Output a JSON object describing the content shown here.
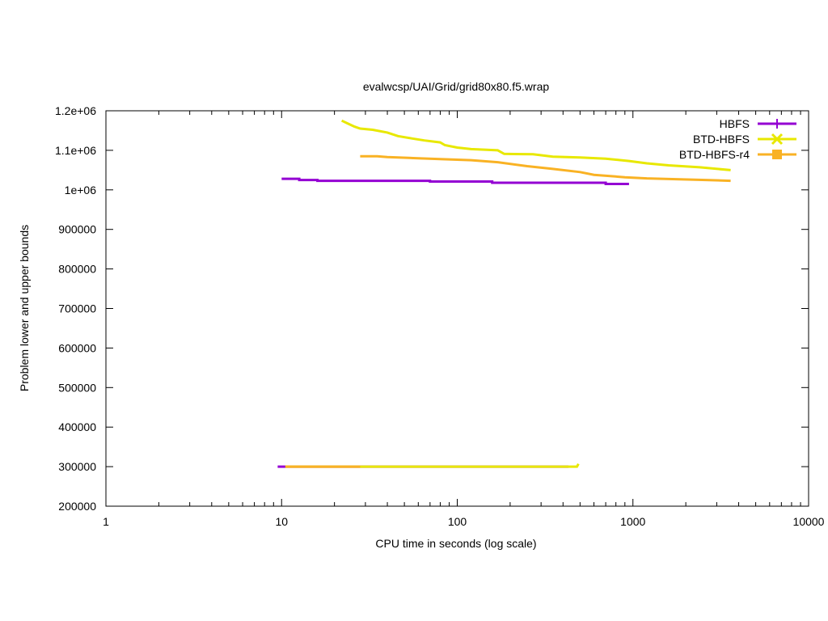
{
  "chart_data": {
    "type": "line",
    "title": "evalwcsp/UAI/Grid/grid80x80.f5.wrap",
    "xlabel": "CPU time in seconds (log scale)",
    "ylabel": "Problem lower and upper bounds",
    "xscale": "log",
    "xlim": [
      1,
      10000
    ],
    "ylim": [
      200000,
      1200000
    ],
    "x_ticks": [
      1,
      10,
      100,
      1000,
      10000
    ],
    "x_tick_labels": [
      "1",
      "10",
      "100",
      "1000",
      "10000"
    ],
    "y_ticks": [
      200000,
      300000,
      400000,
      500000,
      600000,
      700000,
      800000,
      900000,
      1000000,
      1100000,
      1200000
    ],
    "y_tick_labels": [
      "200000",
      "300000",
      "400000",
      "500000",
      "600000",
      "700000",
      "800000",
      "900000",
      "1e+06",
      "1.1e+06",
      "1.2e+06"
    ],
    "grid": false,
    "legend_position": "top-right",
    "series": [
      {
        "name": "HBFS",
        "color": "#9400d3",
        "marker": "plus",
        "upper": [
          [
            10,
            1028000
          ],
          [
            12.6,
            1028000
          ],
          [
            12.6,
            1025000
          ],
          [
            16,
            1025000
          ],
          [
            16,
            1023000
          ],
          [
            70,
            1023000
          ],
          [
            70,
            1021000
          ],
          [
            158,
            1021000
          ],
          [
            158,
            1018000
          ],
          [
            700,
            1018000
          ],
          [
            700,
            1015000
          ],
          [
            950,
            1015000
          ]
        ],
        "lower": [
          [
            9.5,
            300000
          ],
          [
            430,
            300000
          ]
        ]
      },
      {
        "name": "BTD-HBFS",
        "color": "#e8e800",
        "marker": "x",
        "upper": [
          [
            22,
            1175000
          ],
          [
            24,
            1167000
          ],
          [
            26,
            1160000
          ],
          [
            28,
            1155000
          ],
          [
            33,
            1152000
          ],
          [
            40,
            1145000
          ],
          [
            46,
            1136000
          ],
          [
            55,
            1130000
          ],
          [
            65,
            1125000
          ],
          [
            80,
            1120000
          ],
          [
            85,
            1113000
          ],
          [
            100,
            1107000
          ],
          [
            120,
            1103000
          ],
          [
            170,
            1100000
          ],
          [
            185,
            1091000
          ],
          [
            270,
            1090000
          ],
          [
            350,
            1084000
          ],
          [
            500,
            1082000
          ],
          [
            700,
            1079000
          ],
          [
            950,
            1073000
          ],
          [
            1200,
            1067000
          ],
          [
            1600,
            1062000
          ],
          [
            2400,
            1057000
          ],
          [
            3600,
            1050000
          ]
        ],
        "lower": [
          [
            10.5,
            300000
          ],
          [
            480,
            300000
          ],
          [
            490,
            307000
          ]
        ]
      },
      {
        "name": "BTD-HBFS-r4",
        "color": "#f9b224",
        "marker": "square",
        "upper": [
          [
            28,
            1085000
          ],
          [
            35,
            1085000
          ],
          [
            40,
            1083000
          ],
          [
            60,
            1080000
          ],
          [
            80,
            1078000
          ],
          [
            120,
            1075000
          ],
          [
            170,
            1070000
          ],
          [
            250,
            1060000
          ],
          [
            350,
            1053000
          ],
          [
            500,
            1045000
          ],
          [
            600,
            1038000
          ],
          [
            900,
            1032000
          ],
          [
            1200,
            1029000
          ],
          [
            2600,
            1025000
          ],
          [
            3600,
            1023000
          ]
        ],
        "lower": [
          [
            10.5,
            300000
          ],
          [
            28,
            300000
          ]
        ]
      }
    ]
  }
}
